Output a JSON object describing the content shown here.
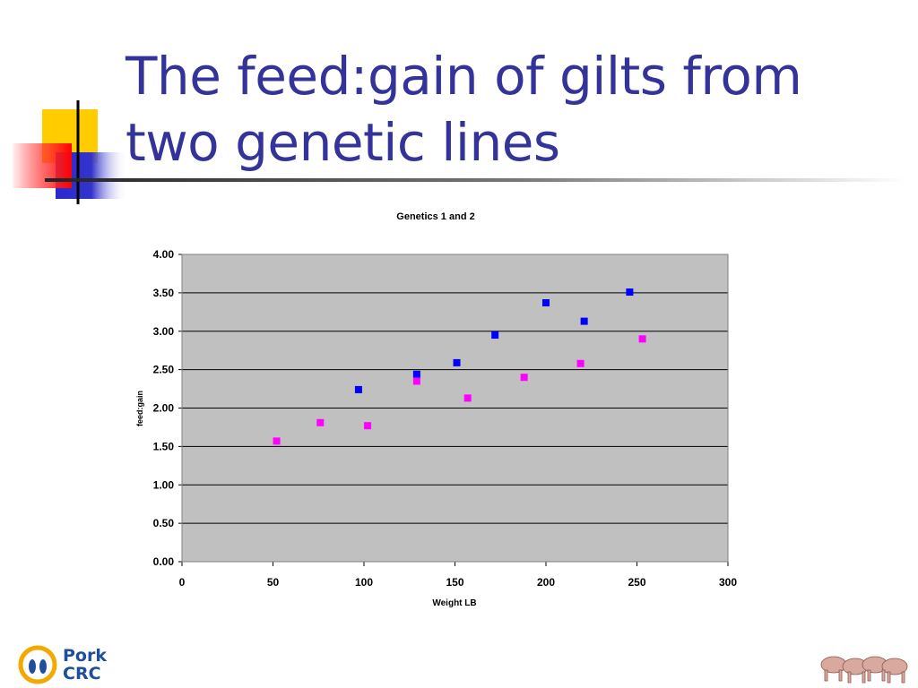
{
  "slide": {
    "title_line1": "The feed:gain of gilts from",
    "title_line2": "two genetic lines"
  },
  "colors": {
    "title": "#333399",
    "series_blue": "#0000ff",
    "series_magenta": "#ff00ff",
    "plot_bg": "#c0c0c0"
  },
  "logo": {
    "line1": "Pork",
    "line2": "CRC"
  },
  "chart_data": {
    "type": "scatter",
    "title": "Genetics 1 and 2",
    "xlabel": "Weight LB",
    "ylabel": "feed:gain",
    "xlim": [
      0,
      300
    ],
    "ylim": [
      0,
      4
    ],
    "x_ticks": [
      "0",
      "50",
      "100",
      "150",
      "200",
      "250",
      "300"
    ],
    "y_ticks": [
      "0.00",
      "0.50",
      "1.00",
      "1.50",
      "2.00",
      "2.50",
      "3.00",
      "3.50",
      "4.00"
    ],
    "grid": true,
    "legend": "none",
    "series": [
      {
        "color": "#0000ff",
        "points": [
          [
            97,
            2.24
          ],
          [
            129,
            2.44
          ],
          [
            151,
            2.59
          ],
          [
            172,
            2.95
          ],
          [
            200,
            3.37
          ],
          [
            221,
            3.13
          ],
          [
            246,
            3.51
          ]
        ]
      },
      {
        "color": "#ff00ff",
        "points": [
          [
            52,
            1.57
          ],
          [
            76,
            1.81
          ],
          [
            102,
            1.77
          ],
          [
            129,
            2.35
          ],
          [
            157,
            2.13
          ],
          [
            188,
            2.4
          ],
          [
            219,
            2.58
          ],
          [
            253,
            2.9
          ]
        ]
      }
    ]
  }
}
